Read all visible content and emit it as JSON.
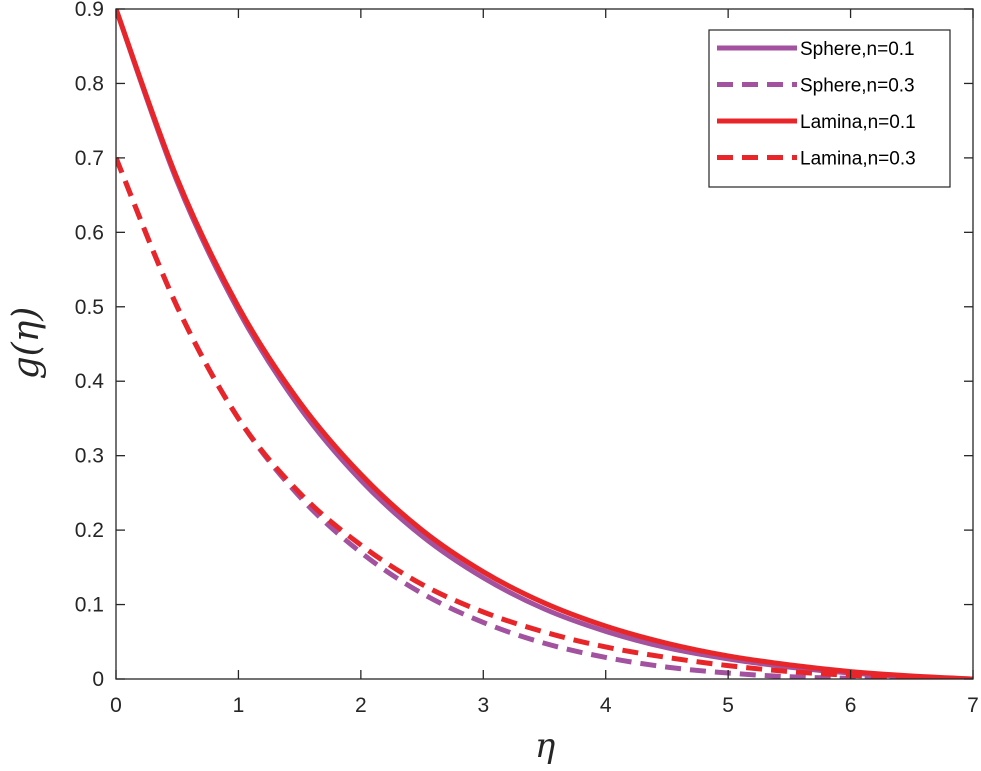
{
  "chart_data": {
    "type": "line",
    "title": "",
    "xlabel": "η",
    "ylabel": "g(η)",
    "xlim": [
      0,
      7
    ],
    "ylim": [
      0,
      0.9
    ],
    "xticks": [
      "0",
      "1",
      "2",
      "3",
      "4",
      "5",
      "6",
      "7"
    ],
    "yticks": [
      "0",
      "0.1",
      "0.2",
      "0.3",
      "0.4",
      "0.5",
      "0.6",
      "0.7",
      "0.8",
      "0.9"
    ],
    "grid": false,
    "legend_position": "top-right",
    "x": [
      0,
      0.5,
      1,
      1.5,
      2,
      2.5,
      3,
      3.5,
      4,
      4.5,
      5,
      5.5,
      6,
      6.5,
      7
    ],
    "series": [
      {
        "name": "Sphere,n=0.1",
        "color": "#A2529F",
        "dash": "solid",
        "values": [
          0.9,
          0.668,
          0.495,
          0.365,
          0.267,
          0.192,
          0.136,
          0.094,
          0.064,
          0.042,
          0.027,
          0.016,
          0.008,
          0.003,
          0.0
        ]
      },
      {
        "name": "Sphere,n=0.3",
        "color": "#A2529F",
        "dash": "dashed",
        "values": [
          0.7,
          0.5,
          0.35,
          0.245,
          0.17,
          0.115,
          0.076,
          0.048,
          0.029,
          0.016,
          0.008,
          0.003,
          0.001,
          0.0,
          0.0
        ]
      },
      {
        "name": "Lamina,n=0.1",
        "color": "#E8262A",
        "dash": "solid",
        "values": [
          0.9,
          0.672,
          0.5,
          0.372,
          0.275,
          0.2,
          0.144,
          0.102,
          0.071,
          0.048,
          0.031,
          0.019,
          0.01,
          0.004,
          0.0
        ]
      },
      {
        "name": "Lamina,n=0.3",
        "color": "#E8262A",
        "dash": "dashed",
        "values": [
          0.7,
          0.5,
          0.35,
          0.25,
          0.18,
          0.127,
          0.09,
          0.063,
          0.043,
          0.029,
          0.018,
          0.01,
          0.005,
          0.002,
          0.0
        ]
      }
    ]
  }
}
